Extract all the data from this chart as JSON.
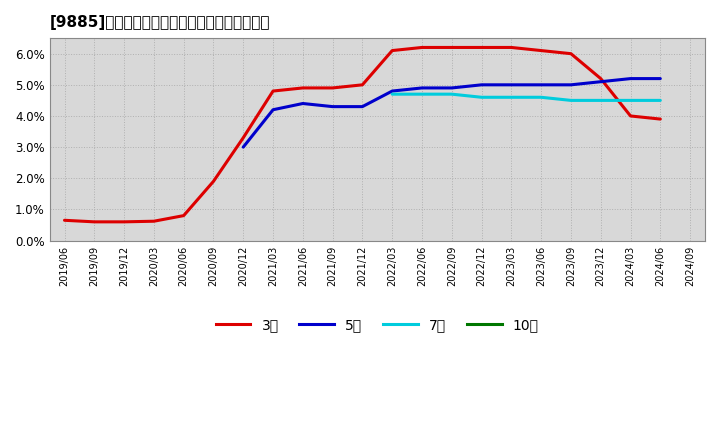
{
  "title": "[9885]　当期純利益マージンの標準偏差の推移",
  "ylim": [
    0.0,
    0.065
  ],
  "yticks": [
    0.0,
    0.01,
    0.02,
    0.03,
    0.04,
    0.05,
    0.06
  ],
  "plot_bg_color": "#d8d8d8",
  "fig_bg_color": "#ffffff",
  "grid_color": "#b0b0b0",
  "legend": [
    "3年",
    "5年",
    "7年",
    "10年"
  ],
  "line_colors": [
    "#dd0000",
    "#0000cc",
    "#00ccdd",
    "#007700"
  ],
  "series": {
    "3year": {
      "dates": [
        "2019/06",
        "2019/09",
        "2019/12",
        "2020/03",
        "2020/06",
        "2020/09",
        "2020/12",
        "2021/03",
        "2021/06",
        "2021/09",
        "2021/12",
        "2022/03",
        "2022/06",
        "2022/09",
        "2022/12",
        "2023/03",
        "2023/06",
        "2023/09",
        "2023/12",
        "2024/03",
        "2024/06"
      ],
      "values": [
        0.0065,
        0.006,
        0.006,
        0.0062,
        0.008,
        0.019,
        0.033,
        0.048,
        0.049,
        0.049,
        0.05,
        0.061,
        0.062,
        0.062,
        0.062,
        0.062,
        0.061,
        0.06,
        0.052,
        0.04,
        0.039
      ]
    },
    "5year": {
      "dates": [
        "2019/06",
        "2019/09",
        "2019/12",
        "2020/03",
        "2020/06",
        "2020/09",
        "2020/12",
        "2021/03",
        "2021/06",
        "2021/09",
        "2021/12",
        "2022/03",
        "2022/06",
        "2022/09",
        "2022/12",
        "2023/03",
        "2023/06",
        "2023/09",
        "2023/12",
        "2024/03",
        "2024/06"
      ],
      "values": [
        null,
        null,
        null,
        null,
        null,
        null,
        0.03,
        0.042,
        0.044,
        0.043,
        0.043,
        0.048,
        0.049,
        0.049,
        0.05,
        0.05,
        0.05,
        0.05,
        0.051,
        0.052,
        0.052
      ]
    },
    "7year": {
      "dates": [
        "2019/06",
        "2019/09",
        "2019/12",
        "2020/03",
        "2020/06",
        "2020/09",
        "2020/12",
        "2021/03",
        "2021/06",
        "2021/09",
        "2021/12",
        "2022/03",
        "2022/06",
        "2022/09",
        "2022/12",
        "2023/03",
        "2023/06",
        "2023/09",
        "2023/12",
        "2024/03",
        "2024/06"
      ],
      "values": [
        null,
        null,
        null,
        null,
        null,
        null,
        null,
        null,
        null,
        null,
        null,
        0.047,
        0.047,
        0.047,
        0.046,
        0.046,
        0.046,
        0.045,
        0.045,
        0.045,
        0.045
      ]
    },
    "10year": {
      "dates": [
        "2019/06",
        "2019/09",
        "2019/12",
        "2020/03",
        "2020/06",
        "2020/09",
        "2020/12",
        "2021/03",
        "2021/06",
        "2021/09",
        "2021/12",
        "2022/03",
        "2022/06",
        "2022/09",
        "2022/12",
        "2023/03",
        "2023/06",
        "2023/09",
        "2023/12",
        "2024/03",
        "2024/06"
      ],
      "values": [
        null,
        null,
        null,
        null,
        null,
        null,
        null,
        null,
        null,
        null,
        null,
        null,
        null,
        null,
        null,
        null,
        null,
        null,
        null,
        null,
        null
      ]
    }
  },
  "xtick_labels": [
    "2019/06",
    "2019/09",
    "2019/12",
    "2020/03",
    "2020/06",
    "2020/09",
    "2020/12",
    "2021/03",
    "2021/06",
    "2021/09",
    "2021/12",
    "2022/03",
    "2022/06",
    "2022/09",
    "2022/12",
    "2023/03",
    "2023/06",
    "2023/09",
    "2023/12",
    "2024/03",
    "2024/06",
    "2024/09"
  ]
}
